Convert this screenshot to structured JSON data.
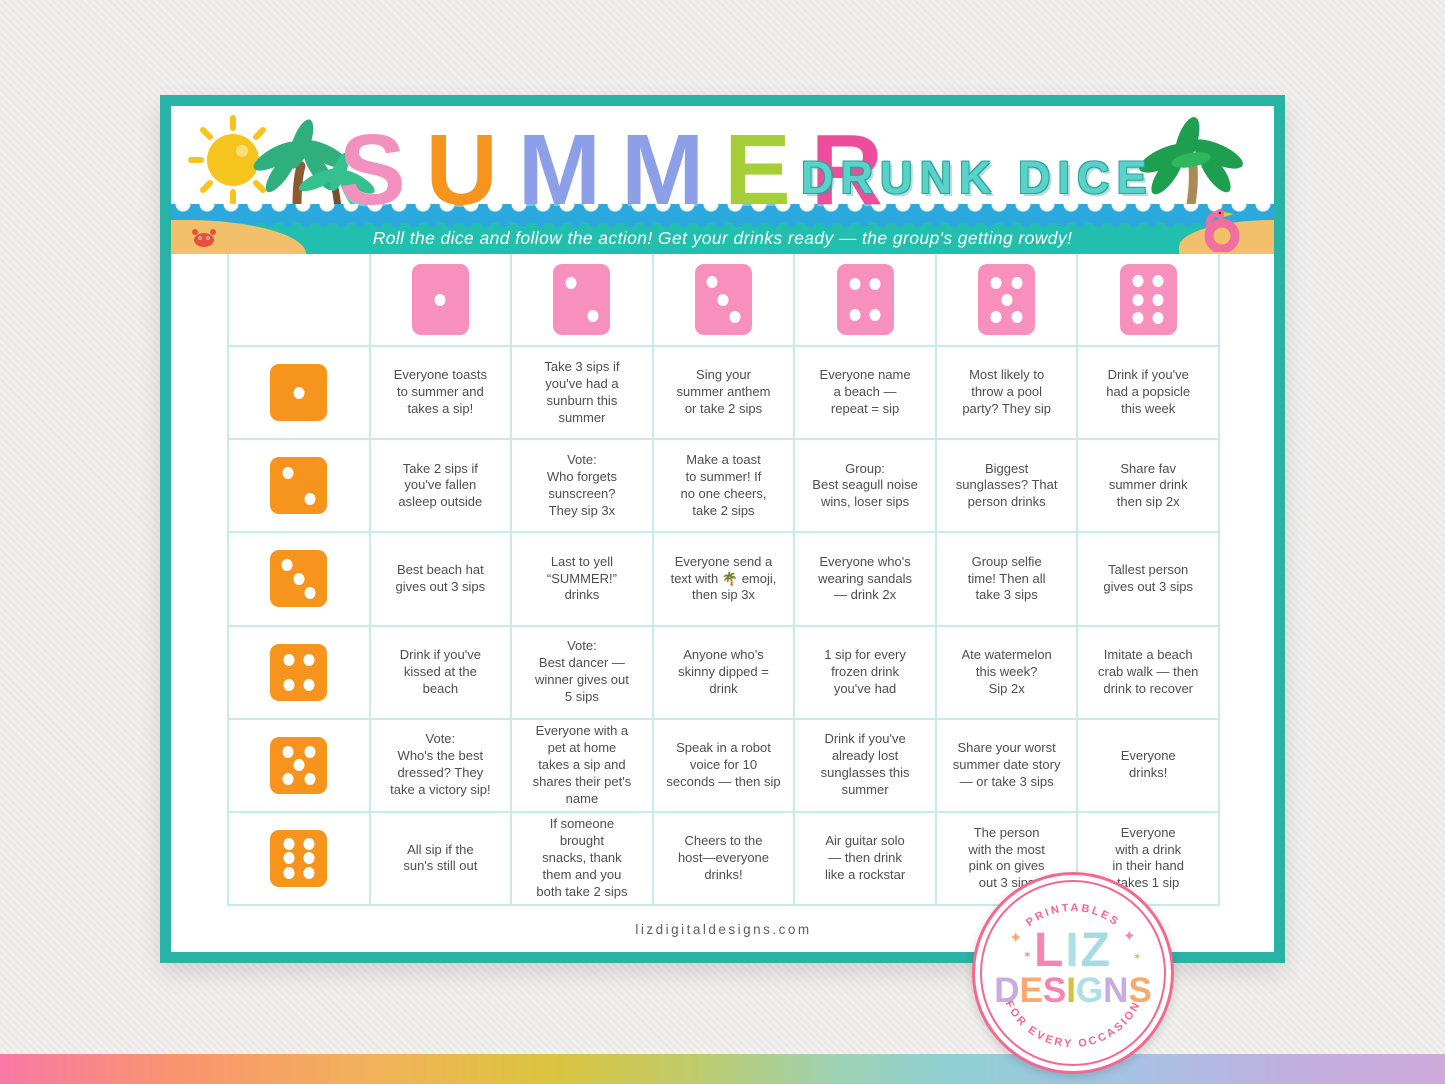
{
  "header": {
    "title_letters": [
      {
        "ch": "S",
        "color": "#F291BE"
      },
      {
        "ch": "U",
        "color": "#F7941E"
      },
      {
        "ch": "M",
        "color": "#8D9FE6"
      },
      {
        "ch": "M",
        "color": "#8D9FE6"
      },
      {
        "ch": "E",
        "color": "#A6CE39"
      },
      {
        "ch": "R",
        "color": "#EE4D9B"
      }
    ],
    "drunk_dice": "DRUNK DICE",
    "tagline": "Roll the dice and follow the action! Get your drinks ready — the group's getting rowdy!"
  },
  "grid": {
    "header_dice": [
      1,
      2,
      3,
      4,
      5,
      6
    ],
    "rows": [
      {
        "die": 1,
        "cells": [
          "Everyone toasts\nto summer and\ntakes a sip!",
          "Take 3 sips if\nyou've had a\nsunburn this\nsummer",
          "Sing your\nsummer anthem\nor take 2 sips",
          "Everyone name\na beach —\nrepeat = sip",
          "Most likely to\nthrow a pool\nparty? They sip",
          "Drink if you've\nhad a popsicle\nthis week"
        ]
      },
      {
        "die": 2,
        "cells": [
          "Take 2 sips if\nyou've fallen\nasleep outside",
          "Vote:\nWho forgets\nsunscreen?\nThey sip 3x",
          "Make a toast\nto summer! If\nno one cheers,\ntake 2 sips",
          "Group:\nBest seagull noise\nwins, loser sips",
          "Biggest\nsunglasses? That\nperson drinks",
          "Share fav\nsummer drink\nthen sip 2x"
        ]
      },
      {
        "die": 3,
        "cells": [
          "Best beach hat\ngives out 3 sips",
          "Last to yell\n“SUMMER!”\ndrinks",
          "Everyone send a\ntext with 🌴 emoji,\nthen sip 3x",
          "Everyone who's\nwearing sandals\n— drink 2x",
          "Group selfie\ntime! Then all\ntake 3 sips",
          "Tallest person\ngives out 3 sips"
        ]
      },
      {
        "die": 4,
        "cells": [
          "Drink if you've\nkissed at the\nbeach",
          "Vote:\nBest dancer —\nwinner gives out\n5 sips",
          "Anyone who's\nskinny dipped =\ndrink",
          "1 sip for every\nfrozen drink\nyou've had",
          "Ate watermelon\nthis week?\nSip 2x",
          "Imitate a beach\ncrab walk — then\ndrink to recover"
        ]
      },
      {
        "die": 5,
        "cells": [
          "Vote:\nWho's the best\ndressed? They\ntake a victory sip!",
          "Everyone with a\npet at home\ntakes a sip and\nshares their pet's\nname",
          "Speak in a robot\nvoice for 10\nseconds — then sip",
          "Drink if you've\nalready lost\nsunglasses this\nsummer",
          "Share your worst\nsummer date story\n— or take 3 sips",
          "Everyone\ndrinks!"
        ]
      },
      {
        "die": 6,
        "cells": [
          "All sip if the\nsun's still out",
          "If someone\nbrought\nsnacks, thank\nthem and you\nboth take 2 sips",
          "Cheers to the\nhost—everyone\ndrinks!",
          "Air guitar solo\n— then drink\nlike a rockstar",
          "The person\nwith the most\npink on gives\nout 3 sips",
          "Everyone\nwith a drink\nin their hand\ntakes 1 sip"
        ]
      }
    ]
  },
  "footer": {
    "site": "lizdigitaldesigns.com"
  },
  "logo": {
    "top_arc": "PRINTABLES",
    "bottom_arc": "FOR EVERY OCCASION",
    "liz_letters": [
      {
        "ch": "L",
        "color": "#F585B5"
      },
      {
        "ch": "I",
        "color": "#AEDFE3"
      },
      {
        "ch": "Z",
        "color": "#A5DBE1"
      }
    ],
    "designs_letters": [
      {
        "ch": "D",
        "color": "#C9ABE3"
      },
      {
        "ch": "E",
        "color": "#F9A96E"
      },
      {
        "ch": "S",
        "color": "#F585B5"
      },
      {
        "ch": "I",
        "color": "#D4C23F"
      },
      {
        "ch": "G",
        "color": "#AEDFE3"
      },
      {
        "ch": "N",
        "color": "#C9ABE3"
      },
      {
        "ch": "S",
        "color": "#F9A96E"
      }
    ]
  },
  "colors": {
    "card_border": "#29B3A6",
    "banner_blue": "#2BA9DC",
    "banner_teal": "#23BFAE",
    "grid_line": "#C9EBE7",
    "die_pink": "#F890BD",
    "die_orange": "#F7941E",
    "logo_pink": "#F2688F"
  }
}
